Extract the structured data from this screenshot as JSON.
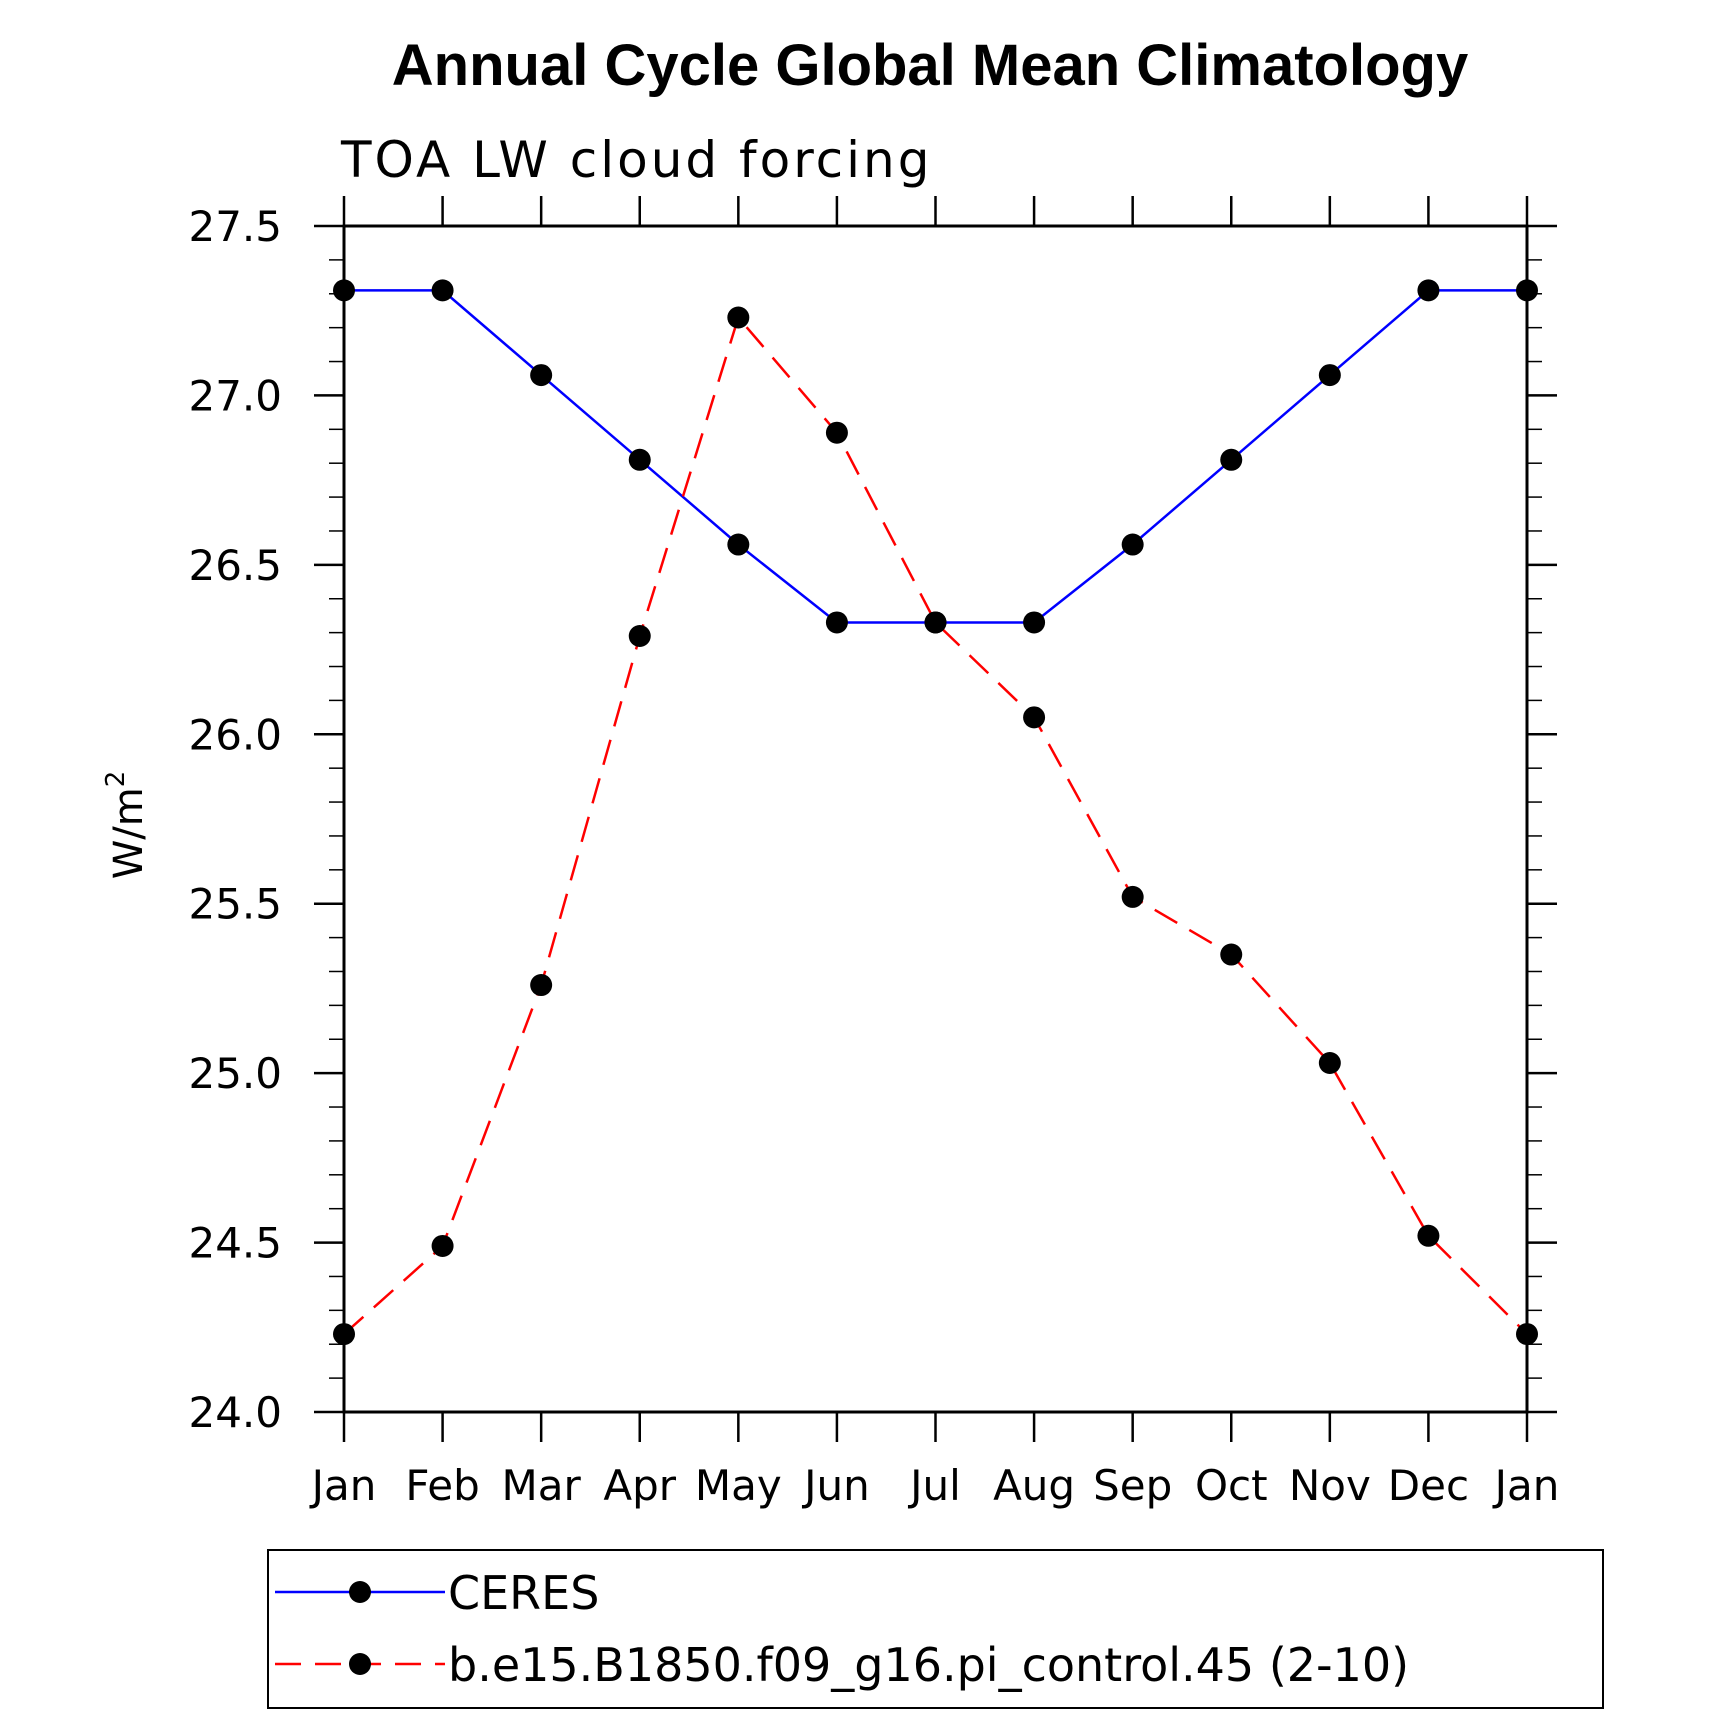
{
  "chart_data": {
    "type": "line",
    "title": "Annual Cycle Global Mean Climatology",
    "subtitle": "TOA LW cloud forcing",
    "ylabel": "W/m",
    "ylabel_superscript": "2",
    "xlabel": "",
    "categories": [
      "Jan",
      "Feb",
      "Mar",
      "Apr",
      "May",
      "Jun",
      "Jul",
      "Aug",
      "Sep",
      "Oct",
      "Nov",
      "Dec",
      "Jan"
    ],
    "ylim": [
      24.0,
      27.5
    ],
    "yticks": [
      "24.0",
      "24.5",
      "25.0",
      "25.5",
      "26.0",
      "26.5",
      "27.0",
      "27.5"
    ],
    "grid": false,
    "legend_position": "bottom",
    "series": [
      {
        "name": "CERES",
        "color": "#0000ff",
        "dash": "solid",
        "values": [
          27.31,
          27.31,
          27.06,
          26.81,
          26.56,
          26.33,
          26.33,
          26.33,
          26.56,
          26.81,
          27.06,
          27.31,
          27.31
        ]
      },
      {
        "name": "b.e15.B1850.f09_g16.pi_control.45 (2-10)",
        "color": "#ff0000",
        "dash": "dashed",
        "values": [
          24.23,
          24.49,
          25.26,
          26.29,
          27.23,
          26.89,
          26.33,
          26.05,
          25.52,
          25.35,
          25.03,
          24.52,
          24.23
        ]
      }
    ],
    "marker_color": "#000000"
  }
}
